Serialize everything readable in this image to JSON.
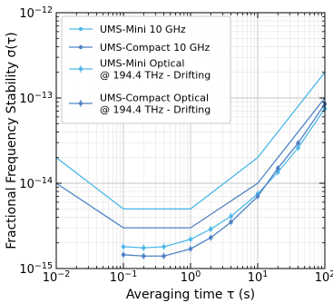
{
  "chart_data": {
    "type": "line",
    "xlabel": "Averaging time τ (s)",
    "ylabel": "Fractional Frequency Stability σ(τ)",
    "xscale": "log",
    "yscale": "log",
    "xlim": [
      0.01,
      100
    ],
    "ylim": [
      1e-15,
      1e-12
    ],
    "grid": true,
    "legend_position": "top-left",
    "x_ticks": [
      {
        "value": 0.01,
        "base": "10",
        "exp": "−2"
      },
      {
        "value": 0.1,
        "base": "10",
        "exp": "−1"
      },
      {
        "value": 1,
        "base": "10",
        "exp": "0"
      },
      {
        "value": 10,
        "base": "10",
        "exp": "1"
      },
      {
        "value": 100,
        "base": "10",
        "exp": "2"
      }
    ],
    "y_ticks": [
      {
        "value": 1e-15,
        "base": "10",
        "exp": "−15"
      },
      {
        "value": 1e-14,
        "base": "10",
        "exp": "−14"
      },
      {
        "value": 1e-13,
        "base": "10",
        "exp": "−13"
      },
      {
        "value": 1e-12,
        "base": "10",
        "exp": "−12"
      }
    ],
    "series": [
      {
        "name": "UMS-Mini 10 GHz",
        "color": "#4db8e8",
        "marker": false,
        "errorbars": false,
        "x": [
          0.01,
          0.1,
          1,
          10,
          100
        ],
        "y": [
          2e-14,
          5e-15,
          5e-15,
          2e-14,
          2e-13
        ]
      },
      {
        "name": "UMS-Compact 10 GHz",
        "color": "#4f82c4",
        "marker": false,
        "errorbars": false,
        "x": [
          0.01,
          0.1,
          1,
          10,
          100
        ],
        "y": [
          1e-14,
          3e-15,
          3e-15,
          1e-14,
          1e-13
        ]
      },
      {
        "name": "UMS-Mini Optical\n@ 194.4 THz - Drifting",
        "color": "#4db8e8",
        "marker": true,
        "errorbars": true,
        "x": [
          0.1,
          0.2,
          0.4,
          1,
          2,
          4,
          10,
          20,
          40,
          100
        ],
        "y": [
          1.8e-15,
          1.75e-15,
          1.8e-15,
          2.2e-15,
          2.9e-15,
          4.1e-15,
          7.5e-15,
          1.35e-14,
          2.6e-14,
          7.5e-14
        ]
      },
      {
        "name": "UMS-Compact Optical\n@ 194.4 THz - Drifting",
        "color": "#4f82c4",
        "marker": true,
        "errorbars": true,
        "x": [
          0.1,
          0.2,
          0.4,
          1,
          2,
          4,
          10,
          20,
          40,
          100
        ],
        "y": [
          1.45e-15,
          1.4e-15,
          1.4e-15,
          1.7e-15,
          2.3e-15,
          3.5e-15,
          7e-15,
          1.5e-14,
          2.95e-14,
          8.5e-14
        ]
      }
    ]
  }
}
